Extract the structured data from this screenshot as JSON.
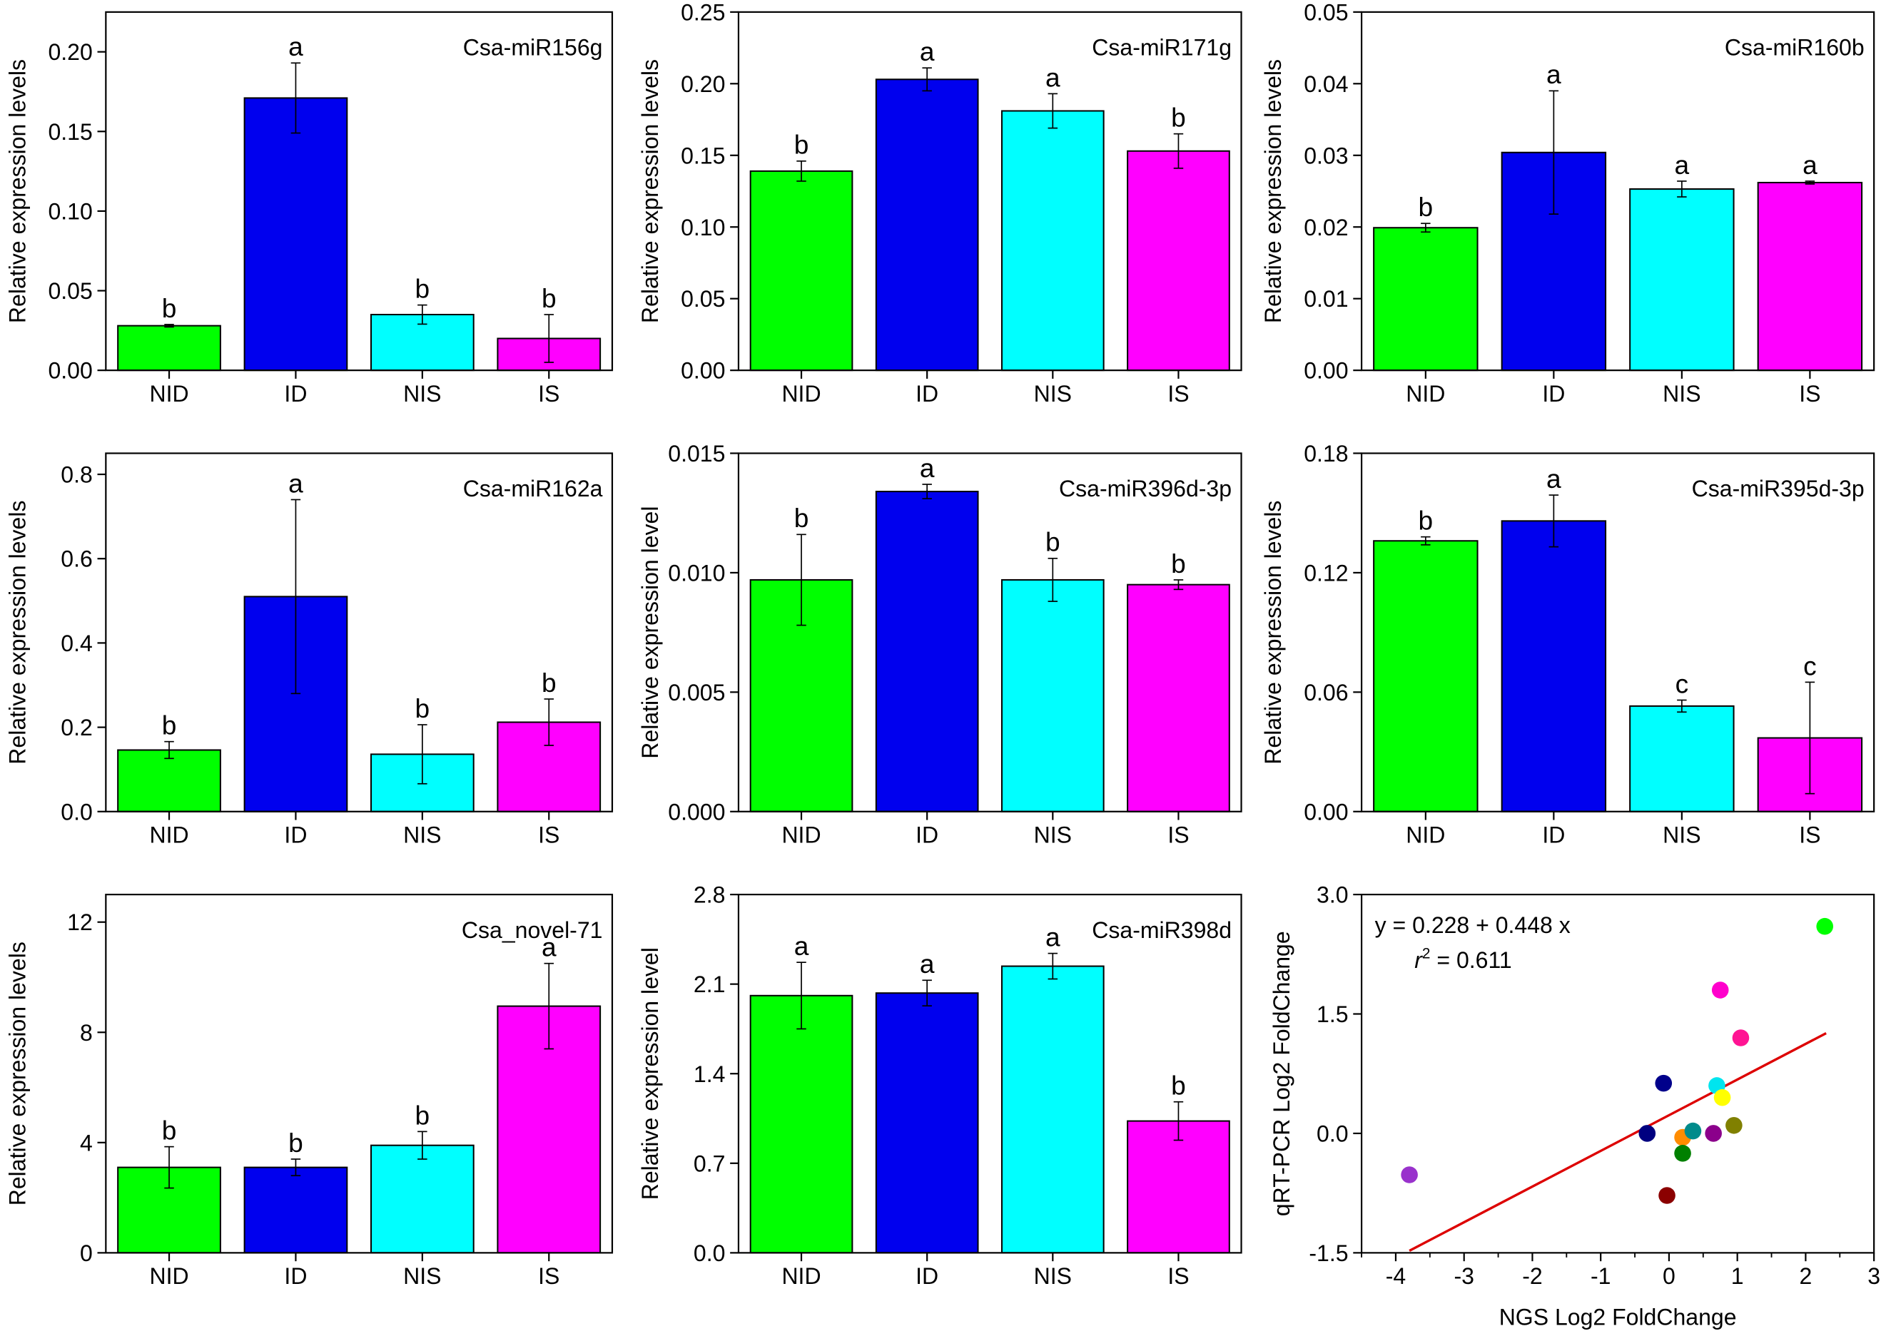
{
  "colors": {
    "green": "#00ff00",
    "blue": "#0000ee",
    "cyan": "#00ffff",
    "magenta": "#ff00ff",
    "regression_line": "#dd0000"
  },
  "y_axis_label": "Relative expression levels",
  "chart_data": [
    {
      "type": "bar",
      "title": "Csa-miR156g",
      "ylabel": "Relative expression levels",
      "categories": [
        "NID",
        "ID",
        "NIS",
        "IS"
      ],
      "values": [
        0.028,
        0.171,
        0.035,
        0.02
      ],
      "errors": [
        0.0008,
        0.022,
        0.006,
        0.015
      ],
      "letters": [
        "b",
        "a",
        "b",
        "b"
      ],
      "colors": [
        "#00ff00",
        "#0000ee",
        "#00ffff",
        "#ff00ff"
      ],
      "ylim": [
        0,
        0.225
      ],
      "yticks": [
        0.0,
        0.05,
        0.1,
        0.15,
        0.2
      ],
      "ytick_labels": [
        "0.00",
        "0.05",
        "0.10",
        "0.15",
        "0.20"
      ]
    },
    {
      "type": "bar",
      "title": "Csa-miR171g",
      "ylabel": "Relative expression levels",
      "categories": [
        "NID",
        "ID",
        "NIS",
        "IS"
      ],
      "values": [
        0.139,
        0.203,
        0.181,
        0.153
      ],
      "errors": [
        0.007,
        0.008,
        0.012,
        0.012
      ],
      "letters": [
        "b",
        "a",
        "a",
        "b"
      ],
      "colors": [
        "#00ff00",
        "#0000ee",
        "#00ffff",
        "#ff00ff"
      ],
      "ylim": [
        0,
        0.25
      ],
      "yticks": [
        0.0,
        0.05,
        0.1,
        0.15,
        0.2,
        0.25
      ],
      "ytick_labels": [
        "0.00",
        "0.05",
        "0.10",
        "0.15",
        "0.20",
        "0.25"
      ]
    },
    {
      "type": "bar",
      "title": "Csa-miR160b",
      "ylabel": "Relative expression levels",
      "categories": [
        "NID",
        "ID",
        "NIS",
        "IS"
      ],
      "values": [
        0.0199,
        0.0304,
        0.0253,
        0.0262
      ],
      "errors": [
        0.0006,
        0.0086,
        0.0011,
        0.0002
      ],
      "letters": [
        "b",
        "a",
        "a",
        "a"
      ],
      "colors": [
        "#00ff00",
        "#0000ee",
        "#00ffff",
        "#ff00ff"
      ],
      "ylim": [
        0,
        0.05
      ],
      "yticks": [
        0.0,
        0.01,
        0.02,
        0.03,
        0.04,
        0.05
      ],
      "ytick_labels": [
        "0.00",
        "0.01",
        "0.02",
        "0.03",
        "0.04",
        "0.05"
      ]
    },
    {
      "type": "bar",
      "title": "Csa-miR162a",
      "ylabel": "Relative expression levels",
      "categories": [
        "NID",
        "ID",
        "NIS",
        "IS"
      ],
      "values": [
        0.146,
        0.51,
        0.136,
        0.212
      ],
      "errors": [
        0.02,
        0.23,
        0.07,
        0.055
      ],
      "letters": [
        "b",
        "a",
        "b",
        "b"
      ],
      "colors": [
        "#00ff00",
        "#0000ee",
        "#00ffff",
        "#ff00ff"
      ],
      "ylim": [
        0,
        0.85
      ],
      "yticks": [
        0.0,
        0.2,
        0.4,
        0.6,
        0.8
      ],
      "ytick_labels": [
        "0.0",
        "0.2",
        "0.4",
        "0.6",
        "0.8"
      ]
    },
    {
      "type": "bar",
      "title": "Csa-miR396d-3p",
      "ylabel": "Relative expression level",
      "categories": [
        "NID",
        "ID",
        "NIS",
        "IS"
      ],
      "values": [
        0.0097,
        0.0134,
        0.0097,
        0.0095
      ],
      "errors": [
        0.0019,
        0.0003,
        0.0009,
        0.0002
      ],
      "letters": [
        "b",
        "a",
        "b",
        "b"
      ],
      "colors": [
        "#00ff00",
        "#0000ee",
        "#00ffff",
        "#ff00ff"
      ],
      "ylim": [
        0,
        0.015
      ],
      "yticks": [
        0.0,
        0.005,
        0.01,
        0.015
      ],
      "ytick_labels": [
        "0.000",
        "0.005",
        "0.010",
        "0.015"
      ]
    },
    {
      "type": "bar",
      "title": "Csa-miR395d-3p",
      "ylabel": "Relative expression levels",
      "categories": [
        "NID",
        "ID",
        "NIS",
        "IS"
      ],
      "values": [
        0.136,
        0.146,
        0.053,
        0.037
      ],
      "errors": [
        0.002,
        0.013,
        0.003,
        0.028
      ],
      "letters": [
        "b",
        "a",
        "c",
        "c"
      ],
      "colors": [
        "#00ff00",
        "#0000ee",
        "#00ffff",
        "#ff00ff"
      ],
      "ylim": [
        0,
        0.18
      ],
      "yticks": [
        0.0,
        0.06,
        0.12,
        0.18
      ],
      "ytick_labels": [
        "0.00",
        "0.06",
        "0.12",
        "0.18"
      ]
    },
    {
      "type": "bar",
      "title": "Csa_novel-71",
      "ylabel": "Relative expression levels",
      "categories": [
        "NID",
        "ID",
        "NIS",
        "IS"
      ],
      "values": [
        3.1,
        3.1,
        3.9,
        8.95
      ],
      "errors": [
        0.75,
        0.3,
        0.5,
        1.55
      ],
      "letters": [
        "b",
        "b",
        "b",
        "a"
      ],
      "colors": [
        "#00ff00",
        "#0000ee",
        "#00ffff",
        "#ff00ff"
      ],
      "ylim": [
        0,
        13
      ],
      "yticks": [
        0,
        4,
        8,
        12
      ],
      "ytick_labels": [
        "0",
        "4",
        "8",
        "12"
      ]
    },
    {
      "type": "bar",
      "title": "Csa-miR398d",
      "ylabel": "Relative expression level",
      "categories": [
        "NID",
        "ID",
        "NIS",
        "IS"
      ],
      "values": [
        2.01,
        2.03,
        2.24,
        1.03
      ],
      "errors": [
        0.26,
        0.1,
        0.1,
        0.15
      ],
      "letters": [
        "a",
        "a",
        "a",
        "b"
      ],
      "colors": [
        "#00ff00",
        "#0000ee",
        "#00ffff",
        "#ff00ff"
      ],
      "ylim": [
        0,
        2.8
      ],
      "yticks": [
        0.0,
        0.7,
        1.4,
        2.1,
        2.8
      ],
      "ytick_labels": [
        "0.0",
        "0.7",
        "1.4",
        "2.1",
        "2.8"
      ]
    },
    {
      "type": "scatter",
      "xlabel": "NGS Log2 FoldChange",
      "ylabel": "qRT-PCR Log2 FoldChange",
      "equation": "y = 0.228 + 0.448 x",
      "r2_symbol": "r",
      "r2_exponent": "2",
      "r2_value": " = 0.611",
      "intercept": 0.228,
      "slope": 0.448,
      "fit_x_range": [
        -3.8,
        2.3
      ],
      "xlim": [
        -4.5,
        3
      ],
      "ylim": [
        -1.5,
        3.0
      ],
      "xticks": [
        -4,
        -3,
        -2,
        -1,
        0,
        1,
        2,
        3
      ],
      "xtick_labels": [
        "-4",
        "-3",
        "-2",
        "-1",
        "0",
        "1",
        "2",
        "3"
      ],
      "yticks": [
        -1.5,
        0.0,
        1.5,
        3.0
      ],
      "ytick_labels": [
        "-1.5",
        "0.0",
        "1.5",
        "3.0"
      ],
      "points": [
        {
          "x": 2.28,
          "y": 2.6,
          "color": "#00ff00"
        },
        {
          "x": 0.75,
          "y": 1.8,
          "color": "#ff00cc"
        },
        {
          "x": 1.05,
          "y": 1.2,
          "color": "#ff1493"
        },
        {
          "x": -0.08,
          "y": 0.63,
          "color": "#00008b"
        },
        {
          "x": 0.7,
          "y": 0.6,
          "color": "#00e5ee"
        },
        {
          "x": 0.78,
          "y": 0.45,
          "color": "#ffff00"
        },
        {
          "x": -0.32,
          "y": 0.0,
          "color": "#000080"
        },
        {
          "x": 0.2,
          "y": -0.05,
          "color": "#ff8c00"
        },
        {
          "x": 0.35,
          "y": 0.03,
          "color": "#008b8b"
        },
        {
          "x": 0.65,
          "y": 0.0,
          "color": "#8b008b"
        },
        {
          "x": 0.95,
          "y": 0.1,
          "color": "#808000"
        },
        {
          "x": 0.2,
          "y": -0.25,
          "color": "#008000"
        },
        {
          "x": -0.03,
          "y": -0.78,
          "color": "#8b0000"
        },
        {
          "x": -3.8,
          "y": -0.52,
          "color": "#9932cc"
        }
      ]
    }
  ]
}
